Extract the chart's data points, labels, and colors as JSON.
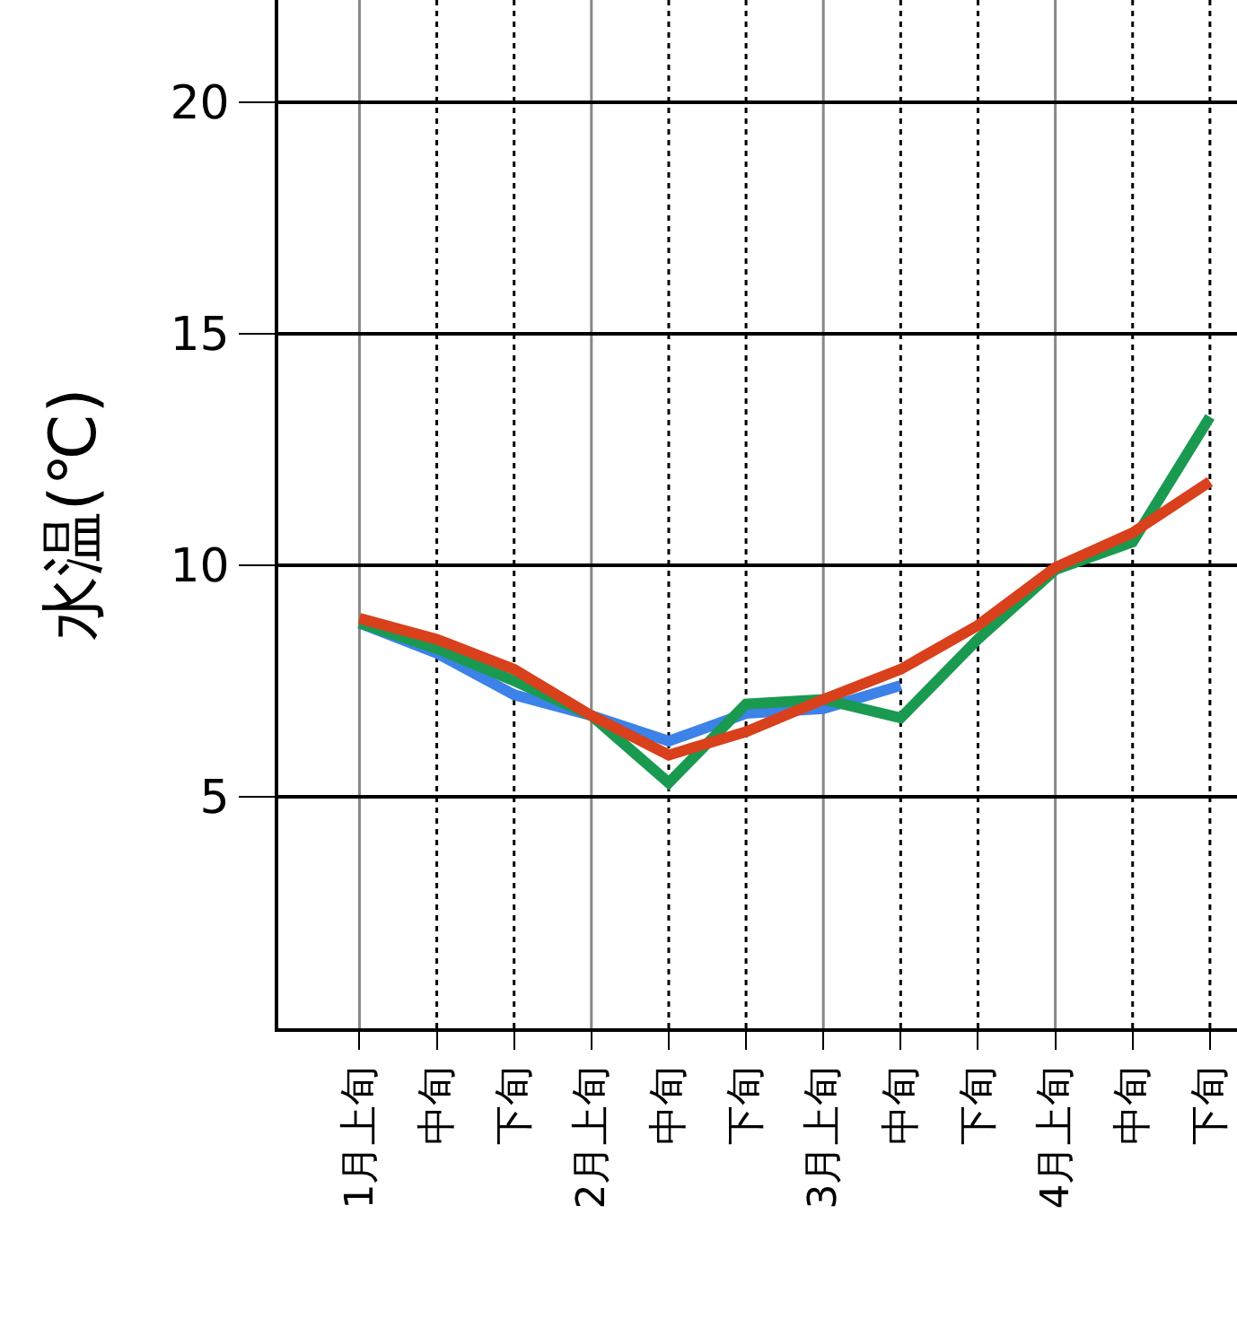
{
  "chart_data": {
    "type": "line",
    "ylabel": "水温(℃)",
    "categories": [
      "1月上旬",
      "中旬",
      "下旬",
      "2月上旬",
      "中旬",
      "下旬",
      "3月上旬",
      "中旬",
      "下旬",
      "4月上旬",
      "中旬",
      "下旬"
    ],
    "series": [
      {
        "color": "#3c82e8",
        "values": [
          8.75,
          8.1,
          7.2,
          6.75,
          6.2,
          6.8,
          6.9,
          7.4,
          null,
          null,
          null,
          null
        ]
      },
      {
        "color": "#1a9a50",
        "values": [
          8.75,
          8.2,
          7.5,
          6.75,
          5.3,
          7.0,
          7.1,
          6.7,
          8.4,
          9.9,
          10.5,
          13.2
        ]
      },
      {
        "color": "#d9401c",
        "values": [
          8.85,
          8.4,
          7.75,
          6.75,
          5.9,
          6.4,
          7.1,
          7.75,
          8.7,
          9.95,
          10.7,
          11.8
        ]
      }
    ],
    "ylim": [
      0,
      22.2
    ],
    "yticks": [
      5,
      10,
      15,
      20
    ],
    "grid": true
  }
}
